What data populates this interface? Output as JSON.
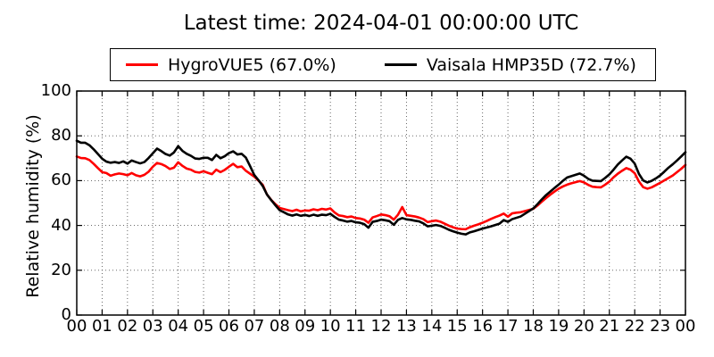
{
  "title": "Latest time: 2024-04-01 00:00:00 UTC",
  "chart_data": {
    "type": "line",
    "title": "Latest time: 2024-04-01 00:00:00 UTC",
    "xlabel": "",
    "ylabel": "Relative humidity (%)",
    "xlim_hours": [
      0,
      24
    ],
    "ylim": [
      0,
      100
    ],
    "grid": true,
    "grid_style": "dotted",
    "legend_position": "top center, outside axes",
    "x_ticks_hours": [
      0,
      1,
      2,
      3,
      4,
      5,
      6,
      7,
      8,
      9,
      10,
      11,
      12,
      13,
      14,
      15,
      16,
      17,
      18,
      19,
      20,
      21,
      22,
      23,
      24
    ],
    "x_tick_labels": [
      "00",
      "01",
      "02",
      "03",
      "04",
      "05",
      "06",
      "07",
      "08",
      "09",
      "10",
      "11",
      "12",
      "13",
      "14",
      "15",
      "16",
      "17",
      "18",
      "19",
      "20",
      "21",
      "22",
      "23",
      "00"
    ],
    "y_ticks": [
      0,
      20,
      40,
      60,
      80,
      100
    ],
    "y_tick_labels": [
      "0",
      "20",
      "40",
      "60",
      "80",
      "100"
    ],
    "sample_step_hours": 0.16667,
    "series": [
      {
        "name": "HygroVUE5 (67.0%)",
        "latest_value_pct": 67.0,
        "color": "#ff0000",
        "values": [
          70.8,
          70.1,
          70.0,
          69.2,
          67.5,
          65.6,
          63.8,
          63.4,
          62.2,
          62.8,
          63.2,
          62.9,
          62.4,
          63.4,
          62.4,
          61.9,
          62.6,
          64.0,
          66.2,
          67.9,
          67.4,
          66.5,
          65.2,
          65.8,
          68.2,
          66.6,
          65.4,
          64.9,
          63.9,
          63.6,
          64.2,
          63.5,
          62.9,
          64.9,
          63.8,
          64.8,
          66.2,
          67.5,
          66.0,
          66.3,
          64.4,
          63.1,
          61.8,
          60.0,
          58.1,
          53.8,
          51.4,
          49.5,
          47.8,
          47.3,
          46.8,
          46.4,
          47.0,
          46.3,
          46.7,
          46.6,
          47.2,
          46.8,
          47.4,
          47.1,
          47.6,
          45.8,
          44.5,
          44.2,
          43.7,
          44.0,
          43.3,
          43.1,
          42.6,
          41.2,
          43.6,
          44.2,
          44.9,
          44.6,
          44.1,
          42.6,
          44.8,
          48.2,
          44.6,
          44.3,
          44.0,
          43.5,
          42.8,
          41.5,
          41.9,
          42.2,
          41.7,
          40.8,
          39.9,
          39.2,
          38.6,
          38.4,
          38.3,
          39.2,
          39.9,
          40.5,
          41.2,
          42.0,
          42.9,
          43.7,
          44.4,
          45.3,
          43.9,
          45.4,
          45.7,
          45.9,
          46.4,
          46.9,
          47.4,
          48.9,
          50.6,
          52.2,
          53.7,
          55.1,
          56.4,
          57.4,
          58.2,
          58.8,
          59.3,
          59.8,
          59.2,
          58.1,
          57.3,
          57.1,
          57.0,
          58.2,
          59.6,
          61.5,
          63.1,
          64.4,
          65.6,
          64.9,
          63.3,
          59.6,
          57.1,
          56.4,
          57.0,
          58.0,
          59.0,
          60.1,
          61.2,
          62.3,
          63.8,
          65.3,
          67.0
        ]
      },
      {
        "name": "Vaisala HMP35D (72.7%)",
        "latest_value_pct": 72.7,
        "color": "#000000",
        "values": [
          77.8,
          76.9,
          76.9,
          75.8,
          74.0,
          71.9,
          69.8,
          68.5,
          68.0,
          68.3,
          67.9,
          68.6,
          67.6,
          69.0,
          68.3,
          67.7,
          68.3,
          70.1,
          72.2,
          74.3,
          73.2,
          71.9,
          71.2,
          72.6,
          75.4,
          73.3,
          72.0,
          71.1,
          69.9,
          69.7,
          70.2,
          70.2,
          69.2,
          71.5,
          70.0,
          70.9,
          72.3,
          73.1,
          71.7,
          72.0,
          70.3,
          66.5,
          62.5,
          60.2,
          57.6,
          53.8,
          51.3,
          49.0,
          46.8,
          45.9,
          44.9,
          44.4,
          44.9,
          44.3,
          44.7,
          44.2,
          44.8,
          44.3,
          44.8,
          44.6,
          45.2,
          43.8,
          42.6,
          42.2,
          41.7,
          42.0,
          41.4,
          41.2,
          40.6,
          39.0,
          41.6,
          42.0,
          42.6,
          42.3,
          41.9,
          40.3,
          42.5,
          43.3,
          42.7,
          42.5,
          42.1,
          41.8,
          40.9,
          39.6,
          39.9,
          40.2,
          39.8,
          39.0,
          38.1,
          37.4,
          36.8,
          36.3,
          36.0,
          36.9,
          37.4,
          38.0,
          38.6,
          39.1,
          39.6,
          40.2,
          40.8,
          42.4,
          41.6,
          42.8,
          43.4,
          44.0,
          45.2,
          46.4,
          47.6,
          49.5,
          51.6,
          53.5,
          55.1,
          56.7,
          58.2,
          59.9,
          61.4,
          62.0,
          62.6,
          63.2,
          62.2,
          60.8,
          60.0,
          59.9,
          59.8,
          61.2,
          62.8,
          64.9,
          67.2,
          69.0,
          70.7,
          69.8,
          67.6,
          63.0,
          60.1,
          59.2,
          59.9,
          61.0,
          62.3,
          64.0,
          65.8,
          67.3,
          69.0,
          70.8,
          72.7
        ]
      }
    ]
  }
}
